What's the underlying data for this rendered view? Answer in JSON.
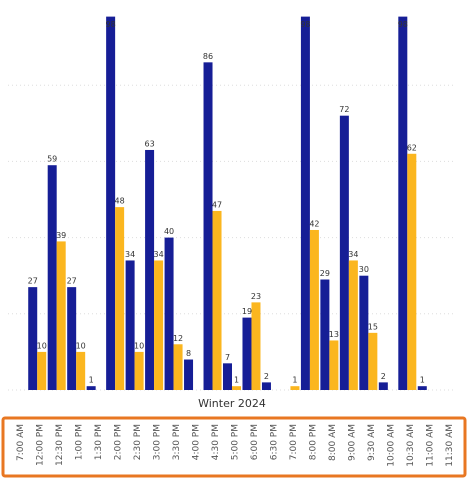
{
  "chart_data": {
    "type": "bar",
    "title": "Winter 2024",
    "categories": [
      "7:00 AM",
      "12:00 PM",
      "12:30 PM",
      "1:00 PM",
      "1:30 PM",
      "2:00 PM",
      "2:30 PM",
      "3:00 PM",
      "3:30 PM",
      "4:00 PM",
      "4:30 PM",
      "5:00 PM",
      "6:00 PM",
      "6:30 PM",
      "7:00 PM",
      "8:00 PM",
      "8:00 AM",
      "9:00 AM",
      "9:30 AM",
      "10:00 AM",
      "10:30 AM",
      "11:00 AM",
      "11:30 AM"
    ],
    "series": [
      {
        "color": "#161e96",
        "values": [
          null,
          27,
          59,
          27,
          1,
          98,
          34,
          63,
          40,
          8,
          86,
          7,
          19,
          2,
          null,
          98,
          29,
          72,
          30,
          2,
          98,
          1,
          null
        ]
      },
      {
        "color": "#fbb61f",
        "values": [
          null,
          10,
          39,
          10,
          null,
          48,
          10,
          34,
          12,
          null,
          47,
          1,
          23,
          null,
          1,
          42,
          13,
          34,
          15,
          null,
          62,
          null,
          null
        ]
      }
    ],
    "ylim": [
      0,
      100
    ],
    "yticks": [
      0,
      20,
      40,
      60,
      80
    ],
    "grid": true
  }
}
